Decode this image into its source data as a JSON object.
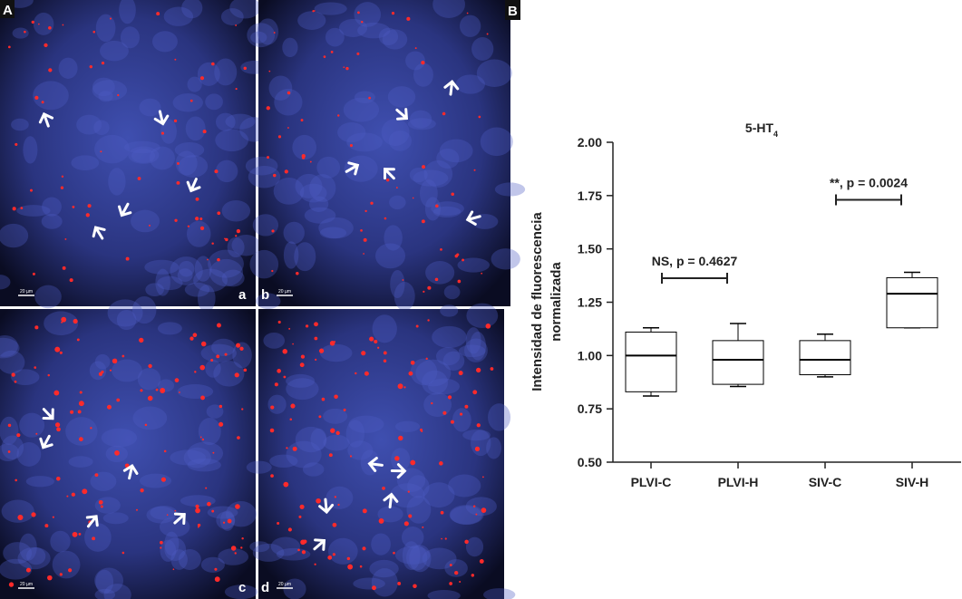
{
  "panels": {
    "left_label": "A",
    "right_label": "B",
    "images": [
      "a",
      "b",
      "c",
      "d"
    ],
    "scale_bar": "20 µm"
  },
  "chart_data": {
    "type": "box",
    "title": "5-HT",
    "title_subscript": "4",
    "ylabel": [
      "Intensidad de fluorescencia",
      "normalizada"
    ],
    "categories": [
      "PLVI-C",
      "PLVI-H",
      "SIV-C",
      "SIV-H"
    ],
    "boxes": [
      {
        "min": 0.81,
        "q1": 0.83,
        "median": 1.0,
        "q3": 1.11,
        "max": 1.13
      },
      {
        "min": 0.855,
        "q1": 0.865,
        "median": 0.98,
        "q3": 1.07,
        "max": 1.15
      },
      {
        "min": 0.9,
        "q1": 0.91,
        "median": 0.98,
        "q3": 1.07,
        "max": 1.1
      },
      {
        "min": 1.13,
        "q1": 1.13,
        "median": 1.29,
        "q3": 1.365,
        "max": 1.39
      }
    ],
    "color": "#000000",
    "ylim": [
      0.5,
      2.0
    ],
    "yticks": [
      {
        "value": 0.5,
        "label": "0.50"
      },
      {
        "value": 0.75,
        "label": "0.75"
      },
      {
        "value": 1.0,
        "label": "1.00"
      },
      {
        "value": 1.25,
        "label": "1.25"
      },
      {
        "value": 1.5,
        "label": "1.50"
      },
      {
        "value": 1.75,
        "label": "1.75"
      },
      {
        "value": 2.0,
        "label": "2.00"
      }
    ],
    "annotations": [
      {
        "text": "NS, p = 0.4627",
        "from": 0,
        "to": 1
      },
      {
        "text": "**, p = 0.0024",
        "from": 2,
        "to": 3
      }
    ]
  }
}
